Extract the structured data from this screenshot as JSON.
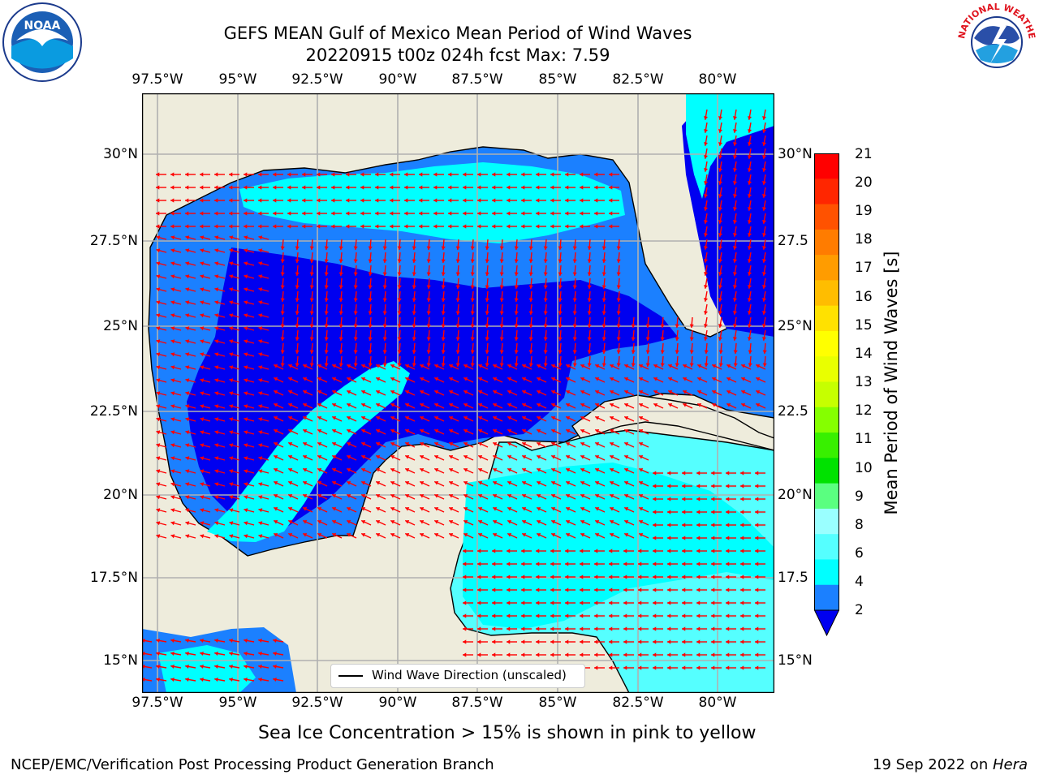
{
  "title": {
    "line1": "GEFS MEAN Gulf of Mexico Mean Period of Wind Waves",
    "line2": "20220915 t00z 024h fcst   Max: 7.59"
  },
  "map": {
    "lon_ticks": [
      "97.5°W",
      "95°W",
      "92.5°W",
      "90°W",
      "87.5°W",
      "85°W",
      "82.5°W",
      "80°W"
    ],
    "lat_ticks_left": [
      "30°N",
      "27.5°N",
      "25°N",
      "22.5°N",
      "20°N",
      "17.5°N",
      "15°N"
    ],
    "lat_ticks_right": [
      "30°N",
      "27.5",
      "25°N",
      "22.5",
      "20°N",
      "17.5",
      "15°N"
    ],
    "legend_label": "Wind Wave Direction (unscaled)",
    "colors": {
      "land": "#eeecdc",
      "ocean_2_4": "#1b80ff",
      "ocean_lt2": "#0000f0",
      "ocean_4_6": "#00ffff",
      "ocean_6_8": "#55ffff",
      "arrow": "#ff0000",
      "gridline": "#b0b0b0"
    }
  },
  "colorbar": {
    "title": "Mean Period of Wind Waves [s]",
    "ticks": [
      "21",
      "20",
      "19",
      "18",
      "17",
      "16",
      "15",
      "14",
      "13",
      "12",
      "11",
      "10",
      "9",
      "8",
      "6",
      "4",
      "2"
    ],
    "colors": [
      "#ff0000",
      "#ff2600",
      "#ff5200",
      "#ff7c00",
      "#ff9c00",
      "#ffbd00",
      "#ffe100",
      "#ffff00",
      "#e9ff00",
      "#c6ff00",
      "#85ff00",
      "#38f000",
      "#00e200",
      "#5aff80",
      "#9affff",
      "#55ffff",
      "#00ffff",
      "#1b80ff",
      "#0000f0"
    ]
  },
  "subtitle": "Sea Ice Concentration > 15% is shown in pink to yellow",
  "footer": {
    "left": "NCEP/EMC/Verification Post Processing Product Generation Branch",
    "right_date": "19 Sep 2022 on ",
    "right_host": "Hera"
  },
  "logos": {
    "noaa_text": "NOAA",
    "nws_text": "NATIONAL WEATHER SERVICE"
  }
}
